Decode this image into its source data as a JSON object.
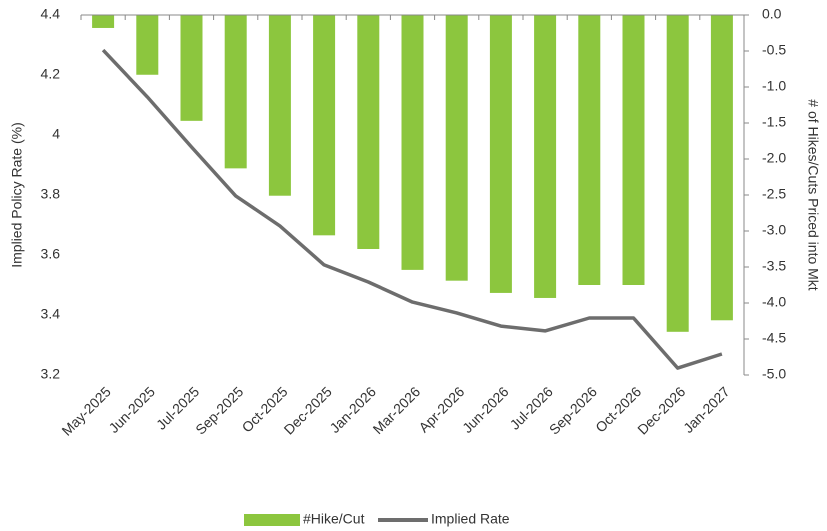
{
  "chart_data": {
    "type": "combo",
    "categories": [
      "May-2025",
      "Jun-2025",
      "Jul-2025",
      "Sep-2025",
      "Oct-2025",
      "Dec-2025",
      "Jan-2026",
      "Mar-2026",
      "Apr-2026",
      "Jun-2026",
      "Jul-2026",
      "Sep-2026",
      "Oct-2026",
      "Dec-2026",
      "Jan-2027"
    ],
    "series": [
      {
        "name": "#Hike/Cut",
        "type": "bar",
        "axis": "y2",
        "color": "#8cc63e",
        "values": [
          -0.18,
          -0.83,
          -1.47,
          -2.13,
          -2.51,
          -3.06,
          -3.25,
          -3.54,
          -3.69,
          -3.86,
          -3.93,
          -3.75,
          -3.75,
          -4.4,
          -4.24
        ]
      },
      {
        "name": "Implied Rate",
        "type": "line",
        "axis": "y",
        "color": "#6d6d6d",
        "values": [
          4.283,
          4.127,
          3.96,
          3.797,
          3.697,
          3.567,
          3.51,
          3.443,
          3.407,
          3.363,
          3.347,
          3.39,
          3.39,
          3.223,
          3.27
        ]
      }
    ],
    "ylabel": "Implied Policy Rate (%)",
    "y2label": "# of Hikes/Cuts Priced into Mkt",
    "ylim": [
      3.2,
      4.4
    ],
    "yticks": [
      3.2,
      3.4,
      3.6,
      3.8,
      4,
      4.2,
      4.4
    ],
    "y2lim": [
      -5,
      0
    ],
    "y2ticks": [
      {
        "value": 0,
        "label": "0.0"
      },
      -0.5,
      {
        "value": -1,
        "label": "-1.0"
      },
      -1.5,
      {
        "value": -2,
        "label": "-2.0"
      },
      -2.5,
      {
        "value": -3,
        "label": "-3.0"
      },
      -3.5,
      {
        "value": -4,
        "label": "-4.0"
      },
      -4.5,
      {
        "value": -5,
        "label": "-5.0"
      }
    ],
    "legend": "bottom"
  }
}
